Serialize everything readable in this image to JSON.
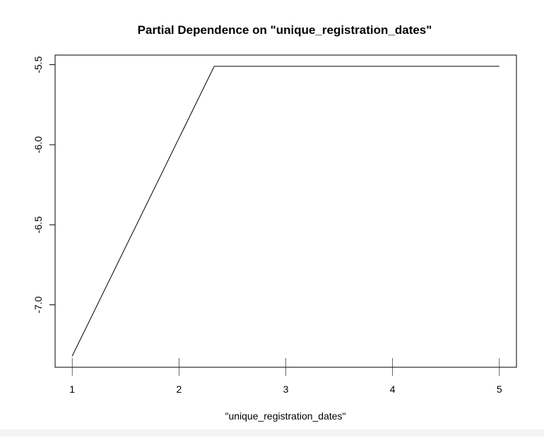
{
  "chart_data": {
    "type": "line",
    "title": "Partial Dependence on \"unique_registration_dates\"",
    "xlabel": "\"unique_registration_dates\"",
    "ylabel": "",
    "x": [
      1,
      2.33,
      5
    ],
    "series": [
      {
        "values": [
          -7.32,
          -5.51,
          -5.51
        ]
      }
    ],
    "xlim": [
      0.84,
      5.16
    ],
    "ylim": [
      -7.39,
      -5.44
    ],
    "xticks": [
      1,
      2,
      3,
      4,
      5
    ],
    "xtick_labels": [
      "1",
      "2",
      "3",
      "4",
      "5"
    ],
    "yticks": [
      -7.0,
      -6.5,
      -6.0,
      -5.5
    ],
    "ytick_labels": [
      "-7.0",
      "-6.5",
      "-6.0",
      "-5.5"
    ],
    "grid": false,
    "legend": "none",
    "line_color": "#000000"
  }
}
